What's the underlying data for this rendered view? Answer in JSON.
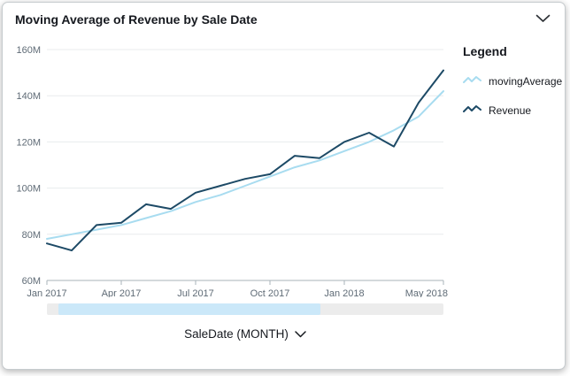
{
  "header": {
    "title": "Moving Average of Revenue by Sale Date"
  },
  "legend": {
    "title": "Legend",
    "items": [
      {
        "label": "movingAverage",
        "color": "#a8dcf0"
      },
      {
        "label": "Revenue",
        "color": "#1d4a66"
      }
    ]
  },
  "x_axis_control": {
    "label": "SaleDate (MONTH)"
  },
  "scrollbar": {
    "selection_start_pct": 3,
    "selection_width_pct": 66,
    "track_color": "#ececec",
    "selection_color": "#cbe8f9"
  },
  "chart_data": {
    "type": "line",
    "title": "Moving Average of Revenue by Sale Date",
    "xlabel": "SaleDate (MONTH)",
    "ylabel": "",
    "y_unit": "M",
    "ylim": [
      60,
      160
    ],
    "grid": "horizontal",
    "legend_position": "right",
    "x": [
      "Jan 2017",
      "Feb 2017",
      "Mar 2017",
      "Apr 2017",
      "May 2017",
      "Jun 2017",
      "Jul 2017",
      "Aug 2017",
      "Sep 2017",
      "Oct 2017",
      "Nov 2017",
      "Dec 2017",
      "Jan 2018",
      "Feb 2018",
      "Mar 2018",
      "Apr 2018",
      "May 2018"
    ],
    "series": [
      {
        "name": "movingAverage",
        "color": "#a8dcf0",
        "values": [
          78,
          80,
          82,
          84,
          87,
          90,
          94,
          97,
          101,
          105,
          109,
          112,
          116,
          120,
          125,
          131,
          142
        ]
      },
      {
        "name": "Revenue",
        "color": "#1d4a66",
        "values": [
          76,
          73,
          84,
          85,
          93,
          91,
          98,
          101,
          104,
          106,
          114,
          113,
          120,
          124,
          118,
          137,
          151
        ]
      }
    ],
    "yticks": [
      {
        "value": 60,
        "label": "60M"
      },
      {
        "value": 80,
        "label": "80M"
      },
      {
        "value": 100,
        "label": "100M"
      },
      {
        "value": 120,
        "label": "120M"
      },
      {
        "value": 140,
        "label": "140M"
      },
      {
        "value": 160,
        "label": "160M"
      }
    ],
    "xticks": [
      {
        "index": 0,
        "label": "Jan 2017"
      },
      {
        "index": 3,
        "label": "Apr 2017"
      },
      {
        "index": 6,
        "label": "Jul 2017"
      },
      {
        "index": 9,
        "label": "Oct 2017"
      },
      {
        "index": 12,
        "label": "Jan 2018"
      },
      {
        "index": 16,
        "label": "May 2018"
      }
    ]
  }
}
